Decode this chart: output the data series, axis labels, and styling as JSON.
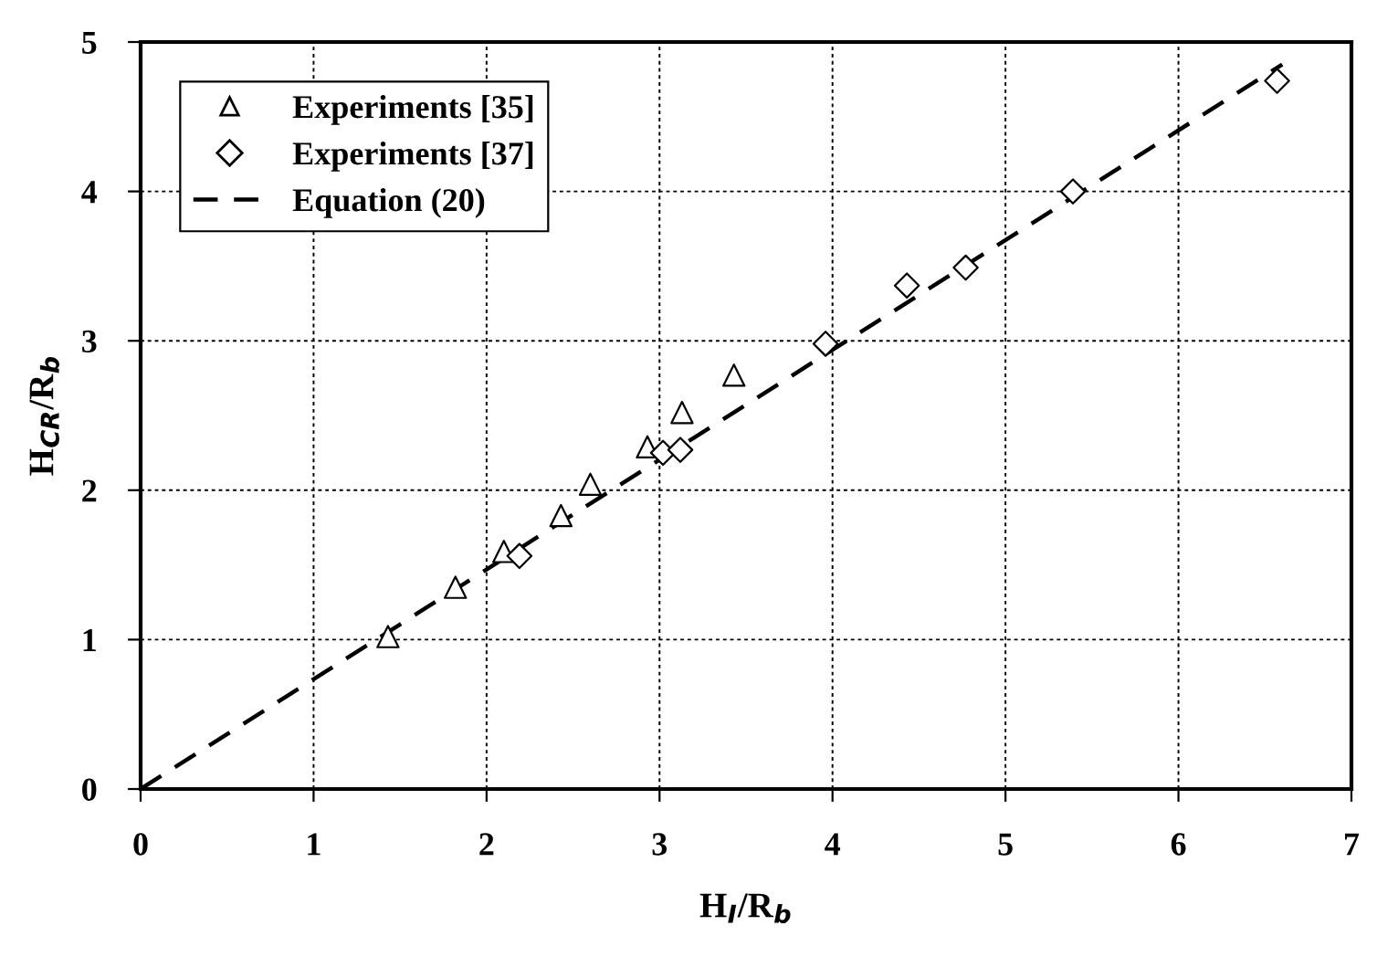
{
  "chart_data": {
    "type": "scatter",
    "xlabel": "H$_{I}$/R$_{b}$",
    "ylabel": "H$_{CR}$/R$_{b}$",
    "xlim": [
      0,
      7
    ],
    "ylim": [
      0,
      5
    ],
    "xticks": [
      0,
      1,
      2,
      3,
      4,
      5,
      6,
      7
    ],
    "yticks": [
      0,
      1,
      2,
      3,
      4,
      5
    ],
    "grid": true,
    "legend": "top left",
    "series": [
      {
        "name": "Experiments [35]",
        "color": "#000000",
        "marker": "triangle",
        "x": [
          1.43,
          1.82,
          2.1,
          2.43,
          2.6,
          2.93,
          3.13,
          3.43
        ],
        "values": [
          1.02,
          1.35,
          1.59,
          1.83,
          2.04,
          2.29,
          2.52,
          2.77
        ]
      },
      {
        "name": "Experiments [37]",
        "color": "#000000",
        "marker": "diamond",
        "x": [
          2.19,
          3.02,
          3.12,
          3.96,
          4.43,
          4.77,
          5.39,
          6.57
        ],
        "values": [
          1.56,
          2.25,
          2.27,
          2.98,
          3.37,
          3.49,
          4.0,
          4.74
        ]
      },
      {
        "name": "Equation (20)",
        "type": "line",
        "color": "#000000",
        "marker": "none",
        "line_style": "dashed",
        "x": [
          0,
          6.6
        ],
        "values": [
          0,
          4.85
        ]
      }
    ]
  }
}
